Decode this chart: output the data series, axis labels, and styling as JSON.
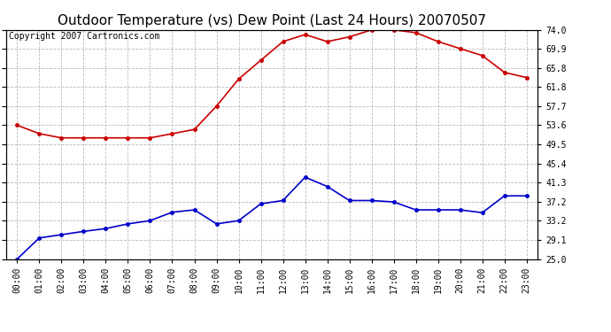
{
  "title": "Outdoor Temperature (vs) Dew Point (Last 24 Hours) 20070507",
  "copyright_text": "Copyright 2007 Cartronics.com",
  "hours": [
    "00:00",
    "01:00",
    "02:00",
    "03:00",
    "04:00",
    "05:00",
    "06:00",
    "07:00",
    "08:00",
    "09:00",
    "10:00",
    "11:00",
    "12:00",
    "13:00",
    "14:00",
    "15:00",
    "16:00",
    "17:00",
    "18:00",
    "19:00",
    "20:00",
    "21:00",
    "22:00",
    "23:00"
  ],
  "temp_red": [
    53.6,
    51.8,
    50.9,
    50.9,
    50.9,
    50.9,
    50.9,
    51.8,
    52.7,
    57.7,
    63.5,
    67.5,
    71.5,
    73.0,
    71.5,
    72.5,
    74.0,
    74.0,
    73.4,
    71.5,
    70.0,
    68.5,
    64.9,
    63.8
  ],
  "dew_blue": [
    25.0,
    29.5,
    30.2,
    30.9,
    31.5,
    32.5,
    33.2,
    35.0,
    35.5,
    32.5,
    33.2,
    36.8,
    37.5,
    42.5,
    40.5,
    37.5,
    37.5,
    37.2,
    35.5,
    35.5,
    35.5,
    34.9,
    38.5,
    38.5
  ],
  "ylim_min": 25.0,
  "ylim_max": 74.0,
  "ytick_values": [
    25.0,
    29.1,
    33.2,
    37.2,
    41.3,
    45.4,
    49.5,
    53.6,
    57.7,
    61.8,
    65.8,
    69.9,
    74.0
  ],
  "ytick_labels": [
    "25.0",
    "29.1",
    "33.2",
    "37.2",
    "41.3",
    "45.4",
    "49.5",
    "53.6",
    "57.7",
    "61.8",
    "65.8",
    "69.9",
    "74.0"
  ],
  "red_color": "#cc0000",
  "blue_color": "#0000cc",
  "grid_color": "#aaaaaa",
  "bg_color": "#ffffff",
  "plot_bg_color": "#ffffff",
  "title_fontsize": 11,
  "tick_fontsize": 7,
  "copyright_fontsize": 7,
  "marker": "o",
  "markersize": 3,
  "linewidth": 1.2
}
